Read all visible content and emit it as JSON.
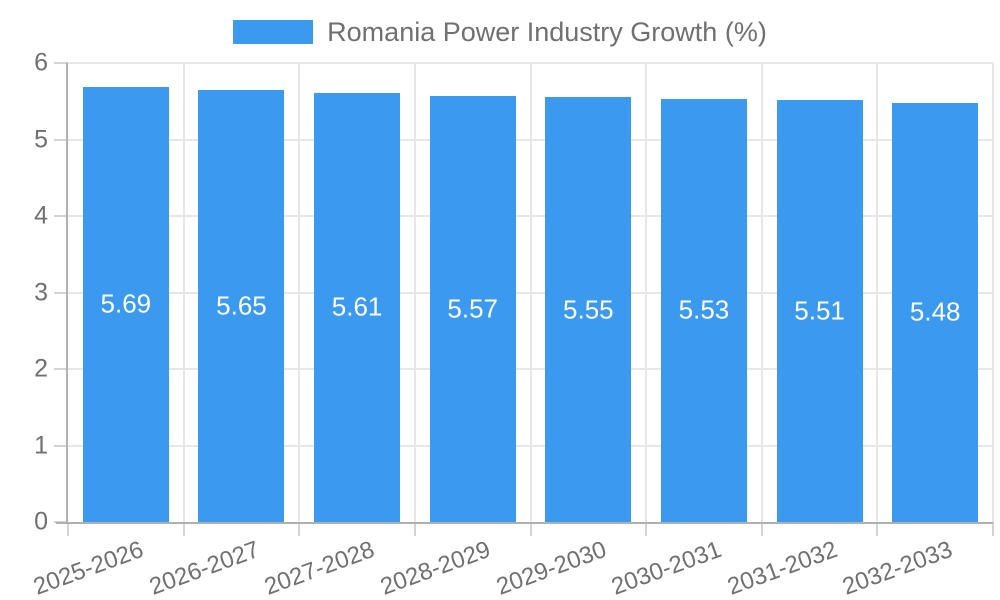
{
  "chart_data": {
    "type": "bar",
    "title": "Romania Power Industry Growth (%)",
    "legend": [
      "Romania Power Industry Growth (%)"
    ],
    "legend_position": "top-center",
    "categories": [
      "2025-2026",
      "2026-2027",
      "2027-2028",
      "2028-2029",
      "2029-2030",
      "2030-2031",
      "2031-2032",
      "2032-2033"
    ],
    "values": [
      5.69,
      5.65,
      5.61,
      5.57,
      5.55,
      5.53,
      5.51,
      5.48
    ],
    "value_labels": [
      "5.69",
      "5.65",
      "5.61",
      "5.57",
      "5.55",
      "5.53",
      "5.51",
      "5.48"
    ],
    "xlabel": "",
    "ylabel": "",
    "ylim": [
      0,
      6
    ],
    "yticks": [
      "0",
      "1",
      "2",
      "3",
      "4",
      "5",
      "6"
    ],
    "grid": true,
    "colors": {
      "bar": "#3B99EE",
      "value_label": "#FFFFFF",
      "axis_text": "#707070",
      "gridline": "#E7E7E7",
      "tick_mark": "#D4D4D4",
      "axis_line": "#B0B0B0",
      "background": "#FFFFFF"
    }
  }
}
